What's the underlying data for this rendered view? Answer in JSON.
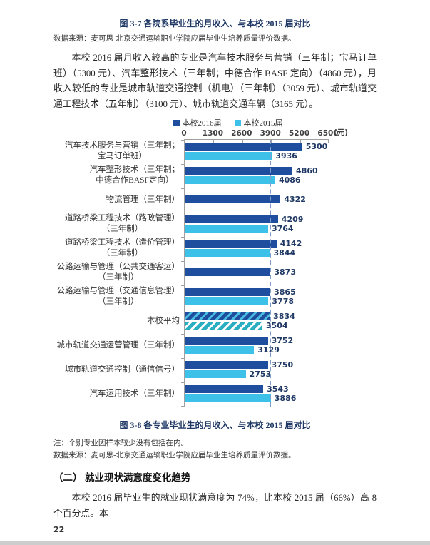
{
  "figure37": {
    "caption": "图 3-7  各院系毕业生的月收入、与本校 2015 届对比"
  },
  "datasource_top": "数据来源：麦可思-北京交通运输职业学院应届毕业生培养质量评价数据。",
  "paragraph1": "本校 2016 届月收入较高的专业是汽车技术服务与营销（三年制；宝马订单班）（5300 元）、汽车整形技术（三年制；中德合作 BASF 定向）（4860 元），月收入较低的专业是城市轨道交通控制（机电）（三年制）（3059 元）、城市轨道交通工程技术（五年制）（3100 元）、城市轨道交通车辆（3165 元）。",
  "chart_data": {
    "type": "bar",
    "orientation": "horizontal",
    "title": "图 3-8  各专业毕业生的月收入、与本校 2015 届对比",
    "unit_label": "(元)",
    "xlim": [
      0,
      6500
    ],
    "x_ticks": [
      0,
      1300,
      2600,
      3900,
      5200,
      6500
    ],
    "grid": false,
    "legend_position": "top",
    "legend": [
      {
        "name": "本校2016届",
        "color": "#1F4E9F"
      },
      {
        "name": "本校2015届",
        "color": "#3EC1E9"
      }
    ],
    "reference_line": {
      "value": 3834,
      "style": "dashed",
      "color": "#7E9CC9"
    },
    "categories": [
      "汽车技术服务与营销（三年制；宝马订单班）",
      "汽车整形技术（三年制；中德合作BASF定向）",
      "物流管理（三年制）",
      "道路桥梁工程技术（路政管理）（三年制）",
      "道路桥梁工程技术（造价管理）（三年制）",
      "公路运输与管理（公共交通客运）（三年制）",
      "公路运输与管理（交通信息管理）（三年制）",
      "本校平均",
      "城市轨道交通运营管理（三年制）",
      "城市轨道交通控制（通信信号）",
      "汽车运用技术（三年制）"
    ],
    "category_label_lines": [
      [
        "汽车技术服务与营销（三年制；",
        "宝马订单班）"
      ],
      [
        "汽车整形技术（三年制；",
        "中德合作BASF定向）"
      ],
      [
        "物流管理（三年制）"
      ],
      [
        "道路桥梁工程技术（路政管理）",
        "（三年制）"
      ],
      [
        "道路桥梁工程技术（造价管理）",
        "（三年制）"
      ],
      [
        "公路运输与管理（公共交通客运）",
        "（三年制）"
      ],
      [
        "公路运输与管理（交通信息管理）",
        "（三年制）"
      ],
      [
        "本校平均"
      ],
      [
        "城市轨道交通运营管理（三年制）"
      ],
      [
        "城市轨道交通控制（通信信号）"
      ],
      [
        "汽车运用技术（三年制）"
      ]
    ],
    "series": [
      {
        "name": "本校2016届",
        "color": "#1F4E9F",
        "values": [
          5300,
          4860,
          4322,
          4209,
          4142,
          3873,
          3865,
          3834,
          3752,
          3750,
          3543
        ]
      },
      {
        "name": "本校2015届",
        "color": "#3EC1E9",
        "values": [
          3936,
          4086,
          null,
          3764,
          3844,
          null,
          3778,
          3504,
          3129,
          2753,
          3886
        ]
      }
    ],
    "average_index": 7
  },
  "note": "注：个别专业因样本较少没有包括在内。",
  "datasource_bottom": "数据来源：麦可思-北京交通运输职业学院应届毕业生培养质量评价数据。",
  "section_heading": "（二） 就业现状满意度变化趋势",
  "paragraph2": "本校 2016 届毕业生的就业现状满意度为 74%，比本校 2015 届（66%）高 8 个百分点。本",
  "page_number": "22"
}
